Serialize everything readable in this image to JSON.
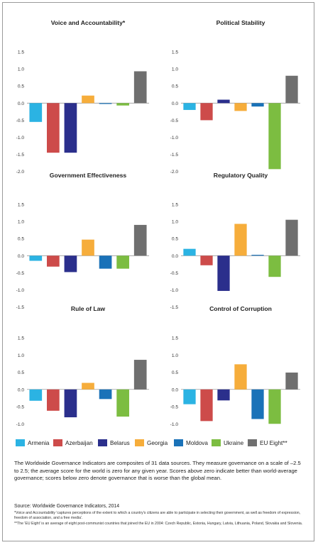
{
  "chart_data": [
    {
      "type": "bar",
      "title": "Voice and Accountability*",
      "ylim": [
        -2.0,
        1.5
      ],
      "categories": [
        "Armenia",
        "Azerbaijan",
        "Belarus",
        "Georgia",
        "Moldova",
        "Ukraine",
        "EU Eight**"
      ],
      "values": [
        -0.55,
        -1.45,
        -1.45,
        0.22,
        -0.01,
        -0.07,
        0.93
      ]
    },
    {
      "type": "bar",
      "title": "Political Stability",
      "ylim": [
        -2.0,
        1.5
      ],
      "categories": [
        "Armenia",
        "Azerbaijan",
        "Belarus",
        "Georgia",
        "Moldova",
        "Ukraine",
        "EU Eight**"
      ],
      "values": [
        -0.2,
        -0.5,
        0.1,
        -0.23,
        -0.1,
        -1.93,
        0.8
      ]
    },
    {
      "type": "bar",
      "title": "Government Effectiveness",
      "ylim": [
        -1.5,
        1.5
      ],
      "categories": [
        "Armenia",
        "Azerbaijan",
        "Belarus",
        "Georgia",
        "Moldova",
        "Ukraine",
        "EU Eight**"
      ],
      "values": [
        -0.15,
        -0.32,
        -0.48,
        0.47,
        -0.38,
        -0.38,
        0.9
      ]
    },
    {
      "type": "bar",
      "title": "Regulatory Quality",
      "ylim": [
        -1.5,
        1.5
      ],
      "categories": [
        "Armenia",
        "Azerbaijan",
        "Belarus",
        "Georgia",
        "Moldova",
        "Ukraine",
        "EU Eight**"
      ],
      "values": [
        0.2,
        -0.28,
        -1.03,
        0.93,
        0.01,
        -0.62,
        1.05
      ]
    },
    {
      "type": "bar",
      "title": "Rule of Law",
      "ylim": [
        -1.5,
        1.5
      ],
      "categories": [
        "Armenia",
        "Azerbaijan",
        "Belarus",
        "Georgia",
        "Moldova",
        "Ukraine",
        "EU Eight**"
      ],
      "values": [
        -0.33,
        -0.62,
        -0.81,
        0.19,
        -0.28,
        -0.79,
        0.86
      ]
    },
    {
      "type": "bar",
      "title": "Control of Corruption",
      "ylim": [
        -1.5,
        1.5
      ],
      "categories": [
        "Armenia",
        "Azerbaijan",
        "Belarus",
        "Georgia",
        "Moldova",
        "Ukraine",
        "EU Eight**"
      ],
      "values": [
        -0.43,
        -0.92,
        -0.32,
        0.73,
        -0.86,
        -1.0,
        0.49
      ]
    }
  ],
  "colors": [
    "#2bb3e3",
    "#cd4b4a",
    "#2b2f8c",
    "#f6ad3b",
    "#1a72b8",
    "#7cbd41",
    "#6f6f6f"
  ],
  "legend": [
    "Armenia",
    "Azerbaijan",
    "Belarus",
    "Georgia",
    "Moldova",
    "Ukraine",
    "EU Eight**"
  ],
  "note": "The Worldwide Governance Indicators are composites of 31 data sources. They measure governance on a scale of –2.5 to 2.5; the average score for the world is zero for any given year. Scores above zero indicate better than world-average governance; scores below zero denote governance that is worse than the global mean.",
  "source": "Source: Worldwide Governance Indicators, 2014",
  "footnote1": "*Voice and Accountability 'captures perceptions of the extent to which a country's citizens are able to participate in selecting their government, as well as freedom of expression, freedom of association, and a free media'.",
  "footnote2": "**The 'EU Eight' is an average of eight post-communist countries that joined the EU in 2004: Czech Republic, Estonia, Hungary, Latvia, Lithuania, Poland, Slovakia and Slovenia."
}
